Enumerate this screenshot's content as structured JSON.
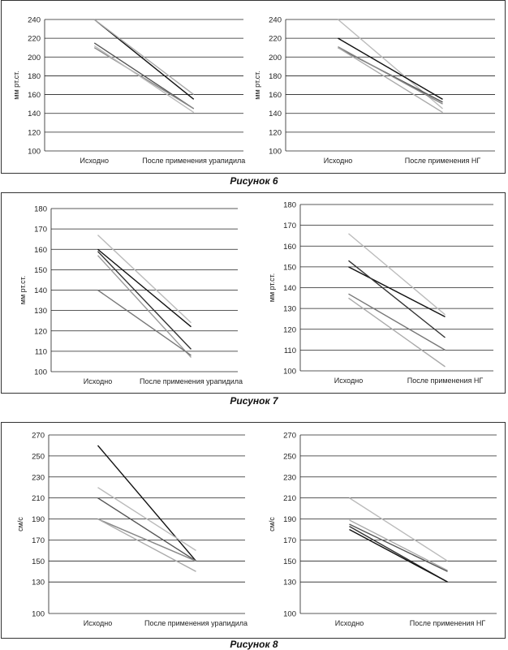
{
  "figures": [
    {
      "caption": "Рисунок 6"
    },
    {
      "caption": "Рисунок 7"
    },
    {
      "caption": "Рисунок 8"
    }
  ],
  "chart_data": [
    {
      "type": "line",
      "ylabel": "мм рт.ст.",
      "categories": [
        "Исходно",
        "После применения урапидила"
      ],
      "ylim": [
        100,
        240
      ],
      "yticks": [
        100,
        120,
        140,
        160,
        180,
        200,
        220,
        240
      ],
      "series": [
        {
          "color": "#111111",
          "values": [
            240,
            155
          ]
        },
        {
          "color": "#555555",
          "values": [
            215,
            145
          ]
        },
        {
          "color": "#888888",
          "values": [
            210,
            145
          ]
        },
        {
          "color": "#bbbbbb",
          "values": [
            212,
            141
          ]
        },
        {
          "color": "#aaaaaa",
          "values": [
            240,
            160
          ]
        }
      ]
    },
    {
      "type": "line",
      "ylabel": "мм рт.ст.",
      "categories": [
        "Исходно",
        "После применения НГ"
      ],
      "ylim": [
        100,
        240
      ],
      "yticks": [
        100,
        120,
        140,
        160,
        180,
        200,
        220,
        240
      ],
      "series": [
        {
          "color": "#bbbbbb",
          "values": [
            240,
            145
          ]
        },
        {
          "color": "#111111",
          "values": [
            220,
            155
          ]
        },
        {
          "color": "#555555",
          "values": [
            210,
            152
          ]
        },
        {
          "color": "#888888",
          "values": [
            211,
            150
          ]
        },
        {
          "color": "#aaaaaa",
          "values": [
            210,
            141
          ]
        }
      ]
    },
    {
      "type": "line",
      "ylabel": "мм рт.ст.",
      "categories": [
        "Исходно",
        "После применения урапидила"
      ],
      "ylim": [
        100,
        180
      ],
      "yticks": [
        100,
        110,
        120,
        130,
        140,
        150,
        160,
        170,
        180
      ],
      "series": [
        {
          "color": "#bbbbbb",
          "values": [
            167,
            124
          ]
        },
        {
          "color": "#111111",
          "values": [
            160,
            122
          ]
        },
        {
          "color": "#333333",
          "values": [
            159,
            111
          ]
        },
        {
          "color": "#999999",
          "values": [
            157,
            107
          ]
        },
        {
          "color": "#777777",
          "values": [
            140,
            108
          ]
        }
      ]
    },
    {
      "type": "line",
      "ylabel": "мм рт.ст.",
      "categories": [
        "Исходно",
        "После применения НГ"
      ],
      "ylim": [
        100,
        180
      ],
      "yticks": [
        100,
        110,
        120,
        130,
        140,
        150,
        160,
        170,
        180
      ],
      "series": [
        {
          "color": "#bbbbbb",
          "values": [
            166,
            127
          ]
        },
        {
          "color": "#111111",
          "values": [
            150,
            126
          ]
        },
        {
          "color": "#333333",
          "values": [
            153,
            116
          ]
        },
        {
          "color": "#777777",
          "values": [
            137,
            110
          ]
        },
        {
          "color": "#aaaaaa",
          "values": [
            135,
            102
          ]
        }
      ]
    },
    {
      "type": "line",
      "ylabel": "см/с",
      "categories": [
        "Исходно",
        "После применения урапидила"
      ],
      "ylim": [
        100,
        270
      ],
      "yticks": [
        100,
        130,
        150,
        170,
        190,
        210,
        230,
        250,
        270
      ],
      "series": [
        {
          "color": "#111111",
          "values": [
            260,
            150
          ]
        },
        {
          "color": "#bbbbbb",
          "values": [
            220,
            160
          ]
        },
        {
          "color": "#555555",
          "values": [
            210,
            150
          ]
        },
        {
          "color": "#888888",
          "values": [
            190,
            150
          ]
        },
        {
          "color": "#aaaaaa",
          "values": [
            190,
            140
          ]
        }
      ]
    },
    {
      "type": "line",
      "ylabel": "см/с",
      "categories": [
        "Исходно",
        "После применения НГ"
      ],
      "ylim": [
        100,
        270
      ],
      "yticks": [
        100,
        130,
        150,
        170,
        190,
        210,
        230,
        250,
        270
      ],
      "series": [
        {
          "color": "#bbbbbb",
          "values": [
            210,
            150
          ]
        },
        {
          "color": "#aaaaaa",
          "values": [
            189,
            141
          ]
        },
        {
          "color": "#555555",
          "values": [
            185,
            140
          ]
        },
        {
          "color": "#333333",
          "values": [
            183,
            130
          ]
        },
        {
          "color": "#111111",
          "values": [
            180,
            130
          ]
        }
      ]
    }
  ]
}
